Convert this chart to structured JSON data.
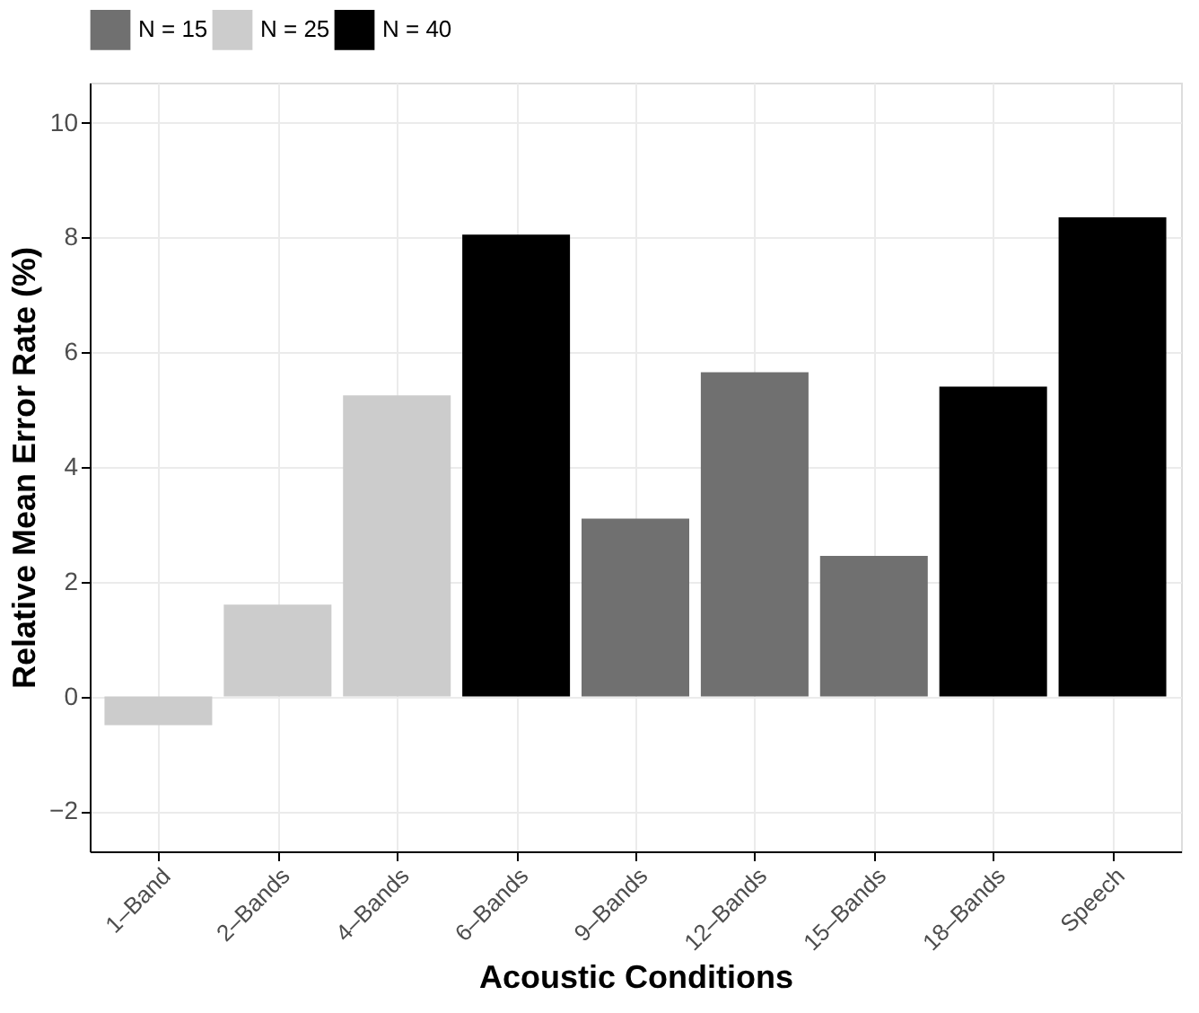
{
  "chart_data": {
    "type": "bar",
    "xlabel": "Acoustic Conditions",
    "ylabel": "Relative Mean Error Rate (%)",
    "categories": [
      "1–Band",
      "2–Bands",
      "4–Bands",
      "6–Bands",
      "9–Bands",
      "12–Bands",
      "15–Bands",
      "18–Bands",
      "Speech"
    ],
    "series": [
      {
        "name": "N = 15",
        "color": "#707070",
        "values": [
          null,
          null,
          null,
          null,
          3.1,
          5.65,
          2.45,
          null,
          null
        ]
      },
      {
        "name": "N = 25",
        "color": "#cccccc",
        "values": [
          -0.5,
          1.6,
          5.25,
          null,
          null,
          null,
          null,
          null,
          null
        ]
      },
      {
        "name": "N = 40",
        "color": "#000000",
        "values": [
          null,
          null,
          null,
          8.05,
          null,
          null,
          null,
          5.4,
          8.35
        ]
      }
    ],
    "ylim": [
      -2.7,
      10.7
    ],
    "yticks": [
      -2,
      0,
      2,
      4,
      6,
      8,
      10
    ],
    "grid": true,
    "legend": "top"
  }
}
